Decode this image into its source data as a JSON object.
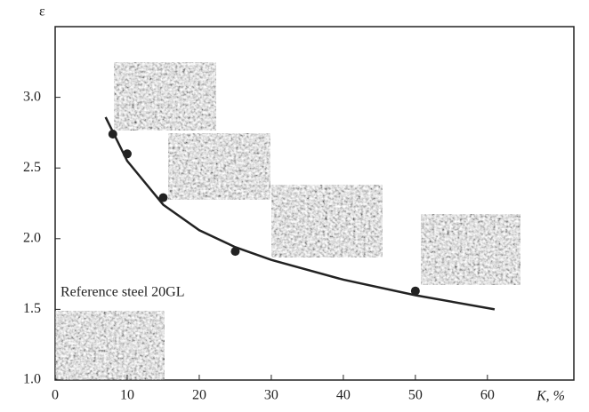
{
  "chart_data": {
    "type": "scatter",
    "x_label": "K, %",
    "y_label": "ε",
    "annotation": "Reference steel 20GL",
    "xlim": [
      0,
      72
    ],
    "xticks": [
      0,
      10,
      20,
      30,
      40,
      50,
      60
    ],
    "ylim": [
      1.0,
      3.5
    ],
    "yticks": [
      {
        "value": 1.0,
        "label": "1.0"
      },
      1.5,
      {
        "value": 2.0,
        "label": "2.0"
      },
      2.5,
      {
        "value": 3.0,
        "label": "3.0"
      }
    ],
    "color": "#222222",
    "points": {
      "x": [
        8,
        10,
        15,
        25,
        50
      ],
      "values": [
        2.74,
        2.6,
        2.29,
        1.91,
        1.63
      ]
    },
    "fit": {
      "x": [
        7,
        10,
        15,
        20,
        25,
        30,
        40,
        50,
        61
      ],
      "values": [
        2.86,
        2.55,
        2.24,
        2.06,
        1.94,
        1.85,
        1.71,
        1.6,
        1.5
      ]
    }
  }
}
